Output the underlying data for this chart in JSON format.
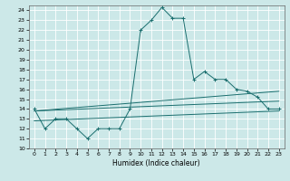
{
  "xlabel": "Humidex (Indice chaleur)",
  "bg_color": "#cce8e8",
  "grid_color": "#ffffff",
  "line_color": "#1a6e6e",
  "xlim": [
    -0.5,
    23.5
  ],
  "ylim": [
    10,
    24.5
  ],
  "yticks": [
    10,
    11,
    12,
    13,
    14,
    15,
    16,
    17,
    18,
    19,
    20,
    21,
    22,
    23,
    24
  ],
  "xticks": [
    0,
    1,
    2,
    3,
    4,
    5,
    6,
    7,
    8,
    9,
    10,
    11,
    12,
    13,
    14,
    15,
    16,
    17,
    18,
    19,
    20,
    21,
    22,
    23
  ],
  "series1_x": [
    0,
    1,
    2,
    3,
    4,
    5,
    6,
    7,
    8,
    9,
    10,
    11,
    12,
    13,
    14,
    15,
    16,
    17,
    18,
    19,
    20,
    21,
    22,
    23
  ],
  "series1_y": [
    14,
    12,
    13,
    13,
    12,
    11,
    12,
    12,
    12,
    14,
    22,
    23,
    24.3,
    23.2,
    23.2,
    17,
    17.8,
    17,
    17,
    16,
    15.8,
    15.2,
    14,
    14
  ],
  "trend1_x": [
    0,
    23
  ],
  "trend1_y": [
    13.8,
    15.8
  ],
  "trend2_x": [
    0,
    23
  ],
  "trend2_y": [
    13.8,
    14.8
  ],
  "trend3_x": [
    0,
    23
  ],
  "trend3_y": [
    12.8,
    13.8
  ]
}
